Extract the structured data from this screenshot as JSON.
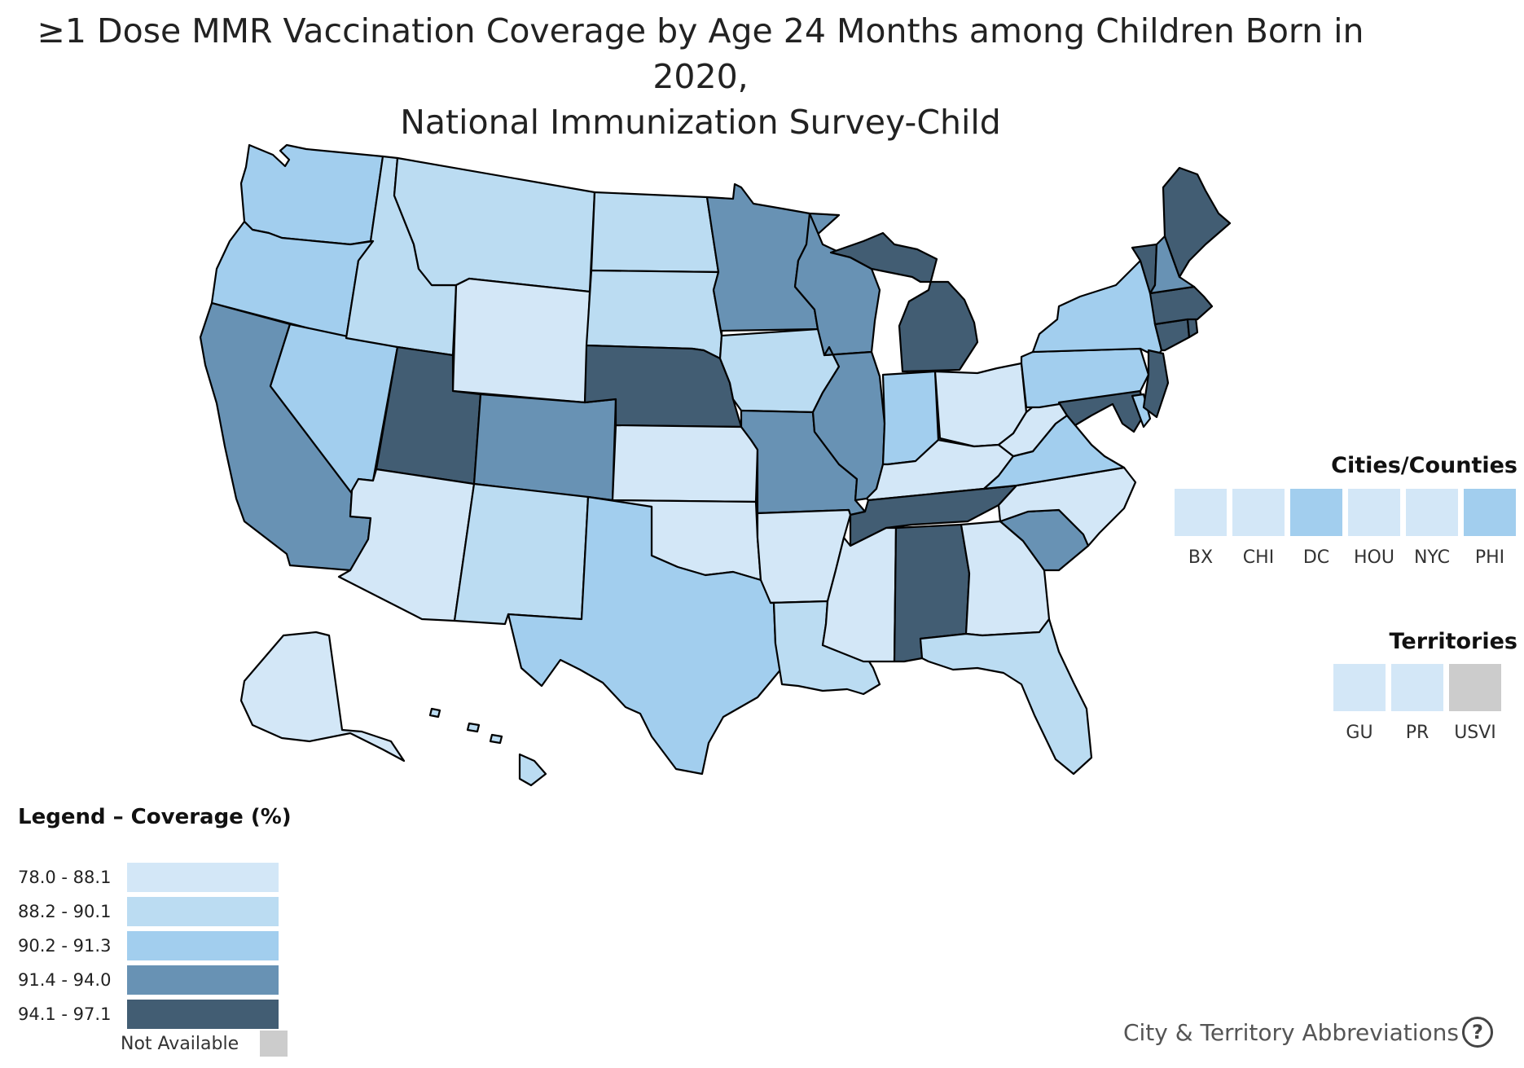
{
  "title": {
    "line1": "≥1 Dose MMR Vaccination Coverage by Age 24 Months among Children Born in 2020,",
    "line2": "National Immunization Survey-Child"
  },
  "colors": {
    "c1": "#d3e7f7",
    "c2": "#bbdcf2",
    "c3": "#a2ceee",
    "c4": "#6892b4",
    "c5": "#425d73",
    "na": "#cccccc"
  },
  "states": {
    "WA": "c3",
    "OR": "c3",
    "CA": "c4",
    "NV": "c3",
    "ID": "c2",
    "MT": "c2",
    "WY": "c1",
    "UT": "c5",
    "AZ": "c1",
    "CO": "c4",
    "NM": "c2",
    "ND": "c2",
    "SD": "c2",
    "NE": "c5",
    "KS": "c1",
    "OK": "c1",
    "TX": "c3",
    "MN": "c4",
    "IA": "c2",
    "MO": "c4",
    "AR": "c1",
    "LA": "c2",
    "WI": "c4",
    "IL": "c4",
    "MI": "c5",
    "IN": "c3",
    "OH": "c1",
    "KY": "c1",
    "TN": "c5",
    "MS": "c1",
    "AL": "c5",
    "GA": "c1",
    "FL": "c2",
    "SC": "c4",
    "NC": "c1",
    "VA": "c3",
    "WV": "c1",
    "PA": "c3",
    "NY": "c3",
    "ME": "c5",
    "VT": "c5",
    "NH": "c4",
    "MA": "c5",
    "CT": "c5",
    "RI": "c5",
    "NJ": "c5",
    "DE": "c3",
    "MD": "c5",
    "AK": "c1",
    "HI": "c2"
  },
  "cities": {
    "title": "Cities/Counties",
    "items": [
      {
        "label": "BX",
        "color": "c1"
      },
      {
        "label": "CHI",
        "color": "c1"
      },
      {
        "label": "DC",
        "color": "c3"
      },
      {
        "label": "HOU",
        "color": "c1"
      },
      {
        "label": "NYC",
        "color": "c1"
      },
      {
        "label": "PHI",
        "color": "c3"
      }
    ]
  },
  "territories": {
    "title": "Territories",
    "items": [
      {
        "label": "GU",
        "color": "c1"
      },
      {
        "label": "PR",
        "color": "c1"
      },
      {
        "label": "USVI",
        "color": "na"
      }
    ]
  },
  "legend": {
    "title": "Legend – Coverage (%)",
    "items": [
      {
        "range": "78.0 - 88.1",
        "color": "c1"
      },
      {
        "range": "88.2 - 90.1",
        "color": "c2"
      },
      {
        "range": "90.2 - 91.3",
        "color": "c3"
      },
      {
        "range": "91.4 - 94.0",
        "color": "c4"
      },
      {
        "range": "94.1 - 97.1",
        "color": "c5"
      }
    ],
    "not_available": "Not Available"
  },
  "abbrev_link": "City & Territory Abbreviations"
}
